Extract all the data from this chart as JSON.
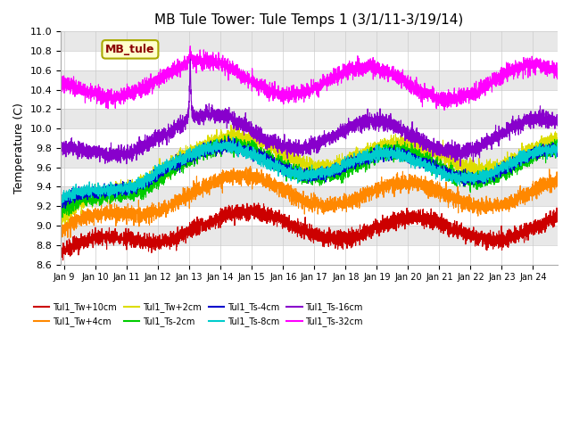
{
  "title": "MB Tule Tower: Tule Temps 1 (3/1/11-3/19/14)",
  "ylabel": "Temperature (C)",
  "ylim": [
    8.6,
    11.0
  ],
  "yticks": [
    8.6,
    8.8,
    9.0,
    9.2,
    9.4,
    9.6,
    9.8,
    10.0,
    10.2,
    10.4,
    10.6,
    10.8,
    11.0
  ],
  "xtick_labels": [
    "Jan 9",
    "Jan 10",
    "Jan 11",
    "Jan 12",
    "Jan 13",
    "Jan 14",
    "Jan 15",
    "Jan 16",
    "Jan 17",
    "Jan 18",
    "Jan 19",
    "Jan 20",
    "Jan 21",
    "Jan 22",
    "Jan 23",
    "Jan 24"
  ],
  "xtick_days": [
    8,
    78,
    148,
    218,
    288,
    358,
    428,
    498,
    568,
    638,
    708,
    778,
    848,
    918,
    988,
    1058
  ],
  "n_days": 1113,
  "series": [
    {
      "name": "Tul1_Tw+10cm",
      "color": "#cc0000",
      "base": 8.65,
      "amplitude": 0.12,
      "trend_end": 9.0,
      "trend_days": 300,
      "noise": 0.04,
      "has_spike": false,
      "spike_val": 0.0,
      "phase": 0.5
    },
    {
      "name": "Tul1_Tw+4cm",
      "color": "#ff8800",
      "base": 8.85,
      "amplitude": 0.13,
      "trend_end": 9.35,
      "trend_days": 280,
      "noise": 0.04,
      "has_spike": false,
      "spike_val": 0.0,
      "phase": 0.8
    },
    {
      "name": "Tul1_Tw+2cm",
      "color": "#dddd00",
      "base": 8.95,
      "amplitude": 0.14,
      "trend_end": 9.75,
      "trend_days": 260,
      "noise": 0.04,
      "has_spike": false,
      "spike_val": 0.0,
      "phase": 1.0
    },
    {
      "name": "Tul1_Ts-2cm",
      "color": "#00cc00",
      "base": 9.0,
      "amplitude": 0.15,
      "trend_end": 9.65,
      "trend_days": 250,
      "noise": 0.04,
      "has_spike": false,
      "spike_val": 0.0,
      "phase": 1.2
    },
    {
      "name": "Tul1_Ts-4cm",
      "color": "#0000cc",
      "base": 9.1,
      "amplitude": 0.13,
      "trend_end": 9.65,
      "trend_days": 240,
      "noise": 0.03,
      "has_spike": false,
      "spike_val": 0.0,
      "phase": 1.4
    },
    {
      "name": "Tul1_Ts-8cm",
      "color": "#00cccc",
      "base": 9.15,
      "amplitude": 0.13,
      "trend_end": 9.65,
      "trend_days": 230,
      "noise": 0.03,
      "has_spike": false,
      "spike_val": 0.0,
      "phase": 1.6
    },
    {
      "name": "Tul1_Ts-16cm",
      "color": "#8800cc",
      "base": 9.65,
      "amplitude": 0.16,
      "trend_end": 9.95,
      "trend_days": 200,
      "noise": 0.04,
      "has_spike": true,
      "spike_val": 10.8,
      "phase": 2.0
    },
    {
      "name": "Tul1_Ts-32cm",
      "color": "#ff00ff",
      "base": 10.35,
      "amplitude": 0.16,
      "trend_end": 10.5,
      "trend_days": 180,
      "noise": 0.04,
      "has_spike": true,
      "spike_val": 10.85,
      "phase": 2.3
    }
  ],
  "annotation_text": "MB_tule",
  "background_color": "#ffffff",
  "grid_color": "#cccccc",
  "band_colors": [
    "#ffffff",
    "#e8e8e8"
  ]
}
